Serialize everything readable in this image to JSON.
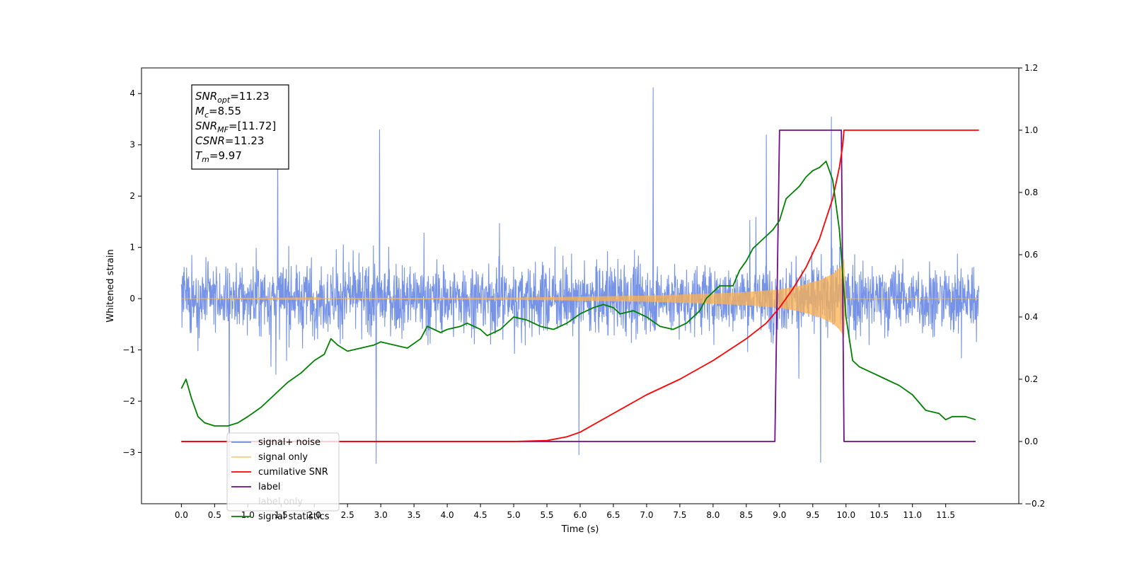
{
  "chart_data": {
    "type": "line",
    "xlabel": "Time (s)",
    "ylabel": "Whitened strain",
    "xlim": [
      -0.6,
      12.6
    ],
    "ylim": [
      -4.0,
      4.5
    ],
    "ylim_right": [
      -0.2,
      1.2
    ],
    "x_ticks": [
      "0.0",
      "0.5",
      "1.0",
      "1.5",
      "2.0",
      "2.5",
      "3.0",
      "3.5",
      "4.0",
      "4.5",
      "5.0",
      "5.5",
      "6.0",
      "6.5",
      "7.0",
      "7.5",
      "8.0",
      "8.5",
      "9.0",
      "9.5",
      "10.0",
      "10.5",
      "11.0",
      "11.5"
    ],
    "y_ticks_left": [
      "−3",
      "−2",
      "−1",
      "0",
      "1",
      "2",
      "3",
      "4"
    ],
    "y_ticks_right": [
      "−0.2",
      "0.0",
      "0.2",
      "0.4",
      "0.6",
      "0.8",
      "1.0",
      "1.2"
    ],
    "grid": false,
    "legend_position": "lower-left",
    "annotation": [
      {
        "sym": "SNR",
        "sub": "opt",
        "val": "=11.23"
      },
      {
        "sym": "M",
        "sub": "c",
        "val": "=8.55"
      },
      {
        "sym": "SNR",
        "sub": "MF",
        "val": "=[11.72]"
      },
      {
        "sym": "CSNR",
        "sub": "",
        "val": "=11.23"
      },
      {
        "sym": "T",
        "sub": "m",
        "val": "=9.97"
      }
    ],
    "series": [
      {
        "name": "signal+ noise",
        "axis": "left",
        "color": "#6f8de6",
        "description_values": {
          "x_range": [
            0.0,
            12.0
          ],
          "approx_amplitude": 1.5,
          "peaks": [
            [
              7.1,
              4.12
            ],
            [
              9.78,
              3.55
            ],
            [
              1.45,
              3.3
            ],
            [
              2.98,
              3.3
            ],
            [
              8.8,
              3.2
            ],
            [
              0.72,
              -3.55
            ],
            [
              2.93,
              -3.22
            ],
            [
              9.62,
              -3.2
            ],
            [
              5.98,
              -3.05
            ]
          ]
        }
      },
      {
        "name": "signal only",
        "axis": "left",
        "color": "#ffb24f",
        "envelope": {
          "x": [
            0.0,
            5.0,
            6.0,
            7.0,
            8.0,
            8.5,
            9.0,
            9.3,
            9.6,
            9.8,
            9.9,
            9.95,
            9.97,
            10.0,
            12.0
          ],
          "amp": [
            0.0,
            0.02,
            0.04,
            0.06,
            0.1,
            0.13,
            0.18,
            0.25,
            0.36,
            0.48,
            0.6,
            0.7,
            0.78,
            0.0,
            0.0
          ]
        }
      },
      {
        "name": "cumilative SNR",
        "axis": "right",
        "color": "#ff0000",
        "x": [
          0.0,
          4.0,
          5.0,
          5.5,
          5.8,
          6.0,
          6.5,
          7.0,
          7.5,
          8.0,
          8.5,
          8.8,
          9.0,
          9.2,
          9.4,
          9.6,
          9.8,
          9.9,
          9.95,
          9.97,
          12.0
        ],
        "y": [
          0.0,
          0.0,
          0.0,
          0.003,
          0.015,
          0.03,
          0.09,
          0.15,
          0.2,
          0.26,
          0.33,
          0.38,
          0.43,
          0.49,
          0.56,
          0.65,
          0.78,
          0.88,
          0.95,
          1.0,
          1.0
        ]
      },
      {
        "name": "label",
        "axis": "right",
        "color": "#6f0f8a",
        "x": [
          0.0,
          8.93,
          9.0,
          9.93,
          9.97,
          11.95
        ],
        "y": [
          0.0,
          0.0,
          1.0,
          1.0,
          0.0,
          0.0
        ]
      },
      {
        "name": "label only",
        "axis": "right",
        "color": "#6f0f8a",
        "legend_only": true
      },
      {
        "name": "signal statistics",
        "axis": "right",
        "color": "#008000",
        "x": [
          0.0,
          0.07,
          0.15,
          0.25,
          0.35,
          0.5,
          0.7,
          0.85,
          1.0,
          1.2,
          1.4,
          1.6,
          1.8,
          2.0,
          2.15,
          2.25,
          2.35,
          2.5,
          2.7,
          2.9,
          3.0,
          3.2,
          3.4,
          3.6,
          3.7,
          3.9,
          4.0,
          4.2,
          4.3,
          4.5,
          4.6,
          4.8,
          5.0,
          5.2,
          5.4,
          5.6,
          5.8,
          6.0,
          6.2,
          6.35,
          6.5,
          6.6,
          6.8,
          7.0,
          7.2,
          7.4,
          7.6,
          7.8,
          7.9,
          8.0,
          8.1,
          8.3,
          8.4,
          8.5,
          8.6,
          8.7,
          8.8,
          8.9,
          9.0,
          9.1,
          9.2,
          9.3,
          9.4,
          9.5,
          9.6,
          9.7,
          9.8,
          9.9,
          10.0,
          10.1,
          10.2,
          10.4,
          10.6,
          10.8,
          11.0,
          11.2,
          11.4,
          11.5,
          11.6,
          11.8,
          11.95
        ],
        "y": [
          0.17,
          0.2,
          0.14,
          0.08,
          0.06,
          0.05,
          0.05,
          0.06,
          0.08,
          0.11,
          0.15,
          0.19,
          0.22,
          0.26,
          0.28,
          0.33,
          0.31,
          0.29,
          0.3,
          0.31,
          0.32,
          0.31,
          0.3,
          0.33,
          0.37,
          0.35,
          0.36,
          0.37,
          0.38,
          0.36,
          0.34,
          0.36,
          0.4,
          0.39,
          0.37,
          0.36,
          0.38,
          0.41,
          0.43,
          0.44,
          0.43,
          0.41,
          0.42,
          0.4,
          0.37,
          0.36,
          0.38,
          0.42,
          0.46,
          0.48,
          0.5,
          0.5,
          0.55,
          0.58,
          0.62,
          0.64,
          0.66,
          0.68,
          0.71,
          0.78,
          0.8,
          0.82,
          0.85,
          0.87,
          0.88,
          0.9,
          0.84,
          0.68,
          0.4,
          0.26,
          0.24,
          0.22,
          0.2,
          0.18,
          0.15,
          0.1,
          0.09,
          0.07,
          0.08,
          0.08,
          0.07
        ]
      }
    ]
  }
}
